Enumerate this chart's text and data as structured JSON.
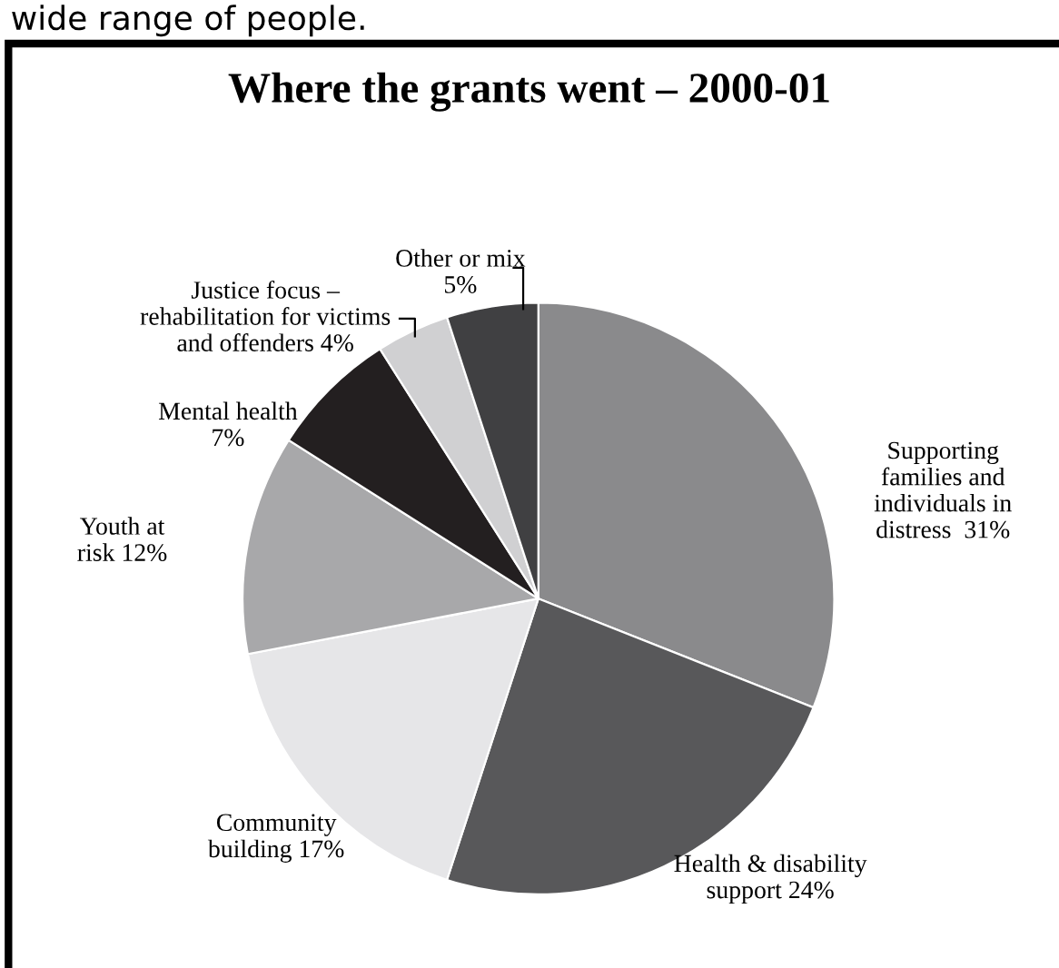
{
  "chart_data": {
    "type": "pie",
    "title": "Where the grants went – 2000-01",
    "categories": [
      "Supporting\nfamilies and\nindividuals in\ndistress  31%",
      "Health & disability\nsupport 24%",
      "Community\nbuilding 17%",
      "Youth at\nrisk 12%",
      "Mental health\n7%",
      "Justice focus –\nrehabilitation for victims\nand offenders 4%",
      "Other or mix\n5%"
    ],
    "values": [
      31,
      24,
      17,
      12,
      7,
      4,
      5
    ],
    "colors": [
      "#8a8a8c",
      "#58585a",
      "#e6e6e8",
      "#a8a8aa",
      "#231f20",
      "#d0d0d2",
      "#404042"
    ],
    "annotations": [
      "wide range of people."
    ]
  }
}
